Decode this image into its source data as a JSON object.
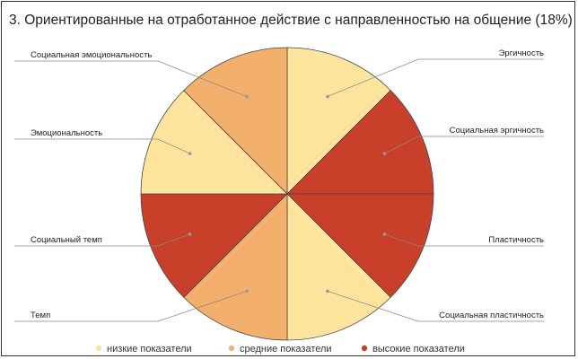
{
  "chart_data": {
    "type": "pie",
    "title": "3. Ориентированные на отработанное действие с направленностью на общение (18%)",
    "slices": [
      {
        "label": "Эргичность",
        "value": 1,
        "level": "низкие показатели"
      },
      {
        "label": "Социальная эргичность",
        "value": 1,
        "level": "высокие показатели"
      },
      {
        "label": "Пластичность",
        "value": 1,
        "level": "высокие показатели"
      },
      {
        "label": "Социальная пластичность",
        "value": 1,
        "level": "низкие показатели"
      },
      {
        "label": "Темп",
        "value": 1,
        "level": "средние показатели"
      },
      {
        "label": "Социальный темп",
        "value": 1,
        "level": "высокие показатели"
      },
      {
        "label": "Эмоциональность",
        "value": 1,
        "level": "низкие показатели"
      },
      {
        "label": "Социальная эмоциональность",
        "value": 1,
        "level": "средние показатели"
      }
    ],
    "legend": {
      "placement": "bottom",
      "entries": [
        {
          "label": "низкие показатели",
          "color": "#fde49c"
        },
        {
          "label": "средние показатели",
          "color": "#f3b06c"
        },
        {
          "label": "высокие показатели",
          "color": "#c9402a"
        }
      ]
    }
  }
}
